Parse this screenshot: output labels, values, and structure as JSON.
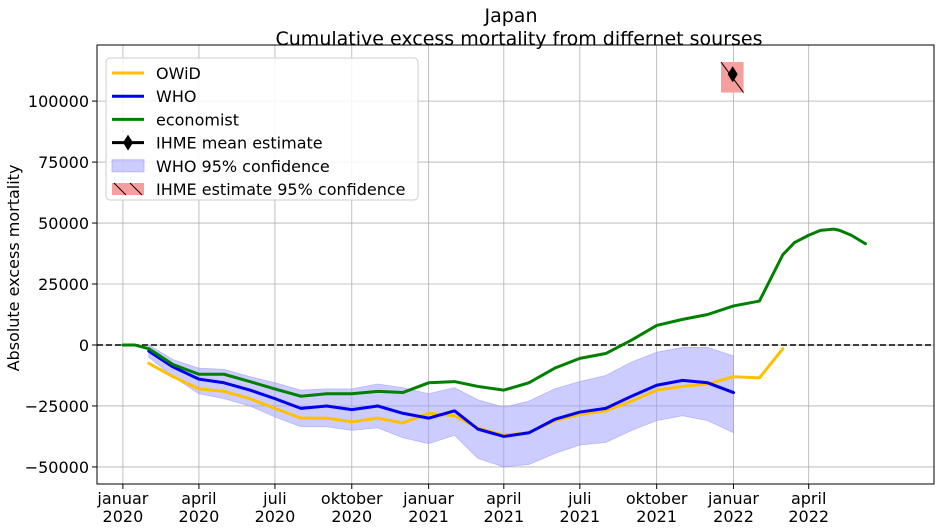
{
  "chart_data": {
    "type": "line",
    "title": "Japan",
    "subtitle": "Cumulative excess mortality from differnet sourses",
    "ylabel": "Absolute excess mortality",
    "xlabel": "",
    "ylim": [
      -57000,
      123000
    ],
    "xlim": [
      "2019-12-01",
      "2022-08-29"
    ],
    "grid": true,
    "legend_position": "top-left",
    "x_ticks": [
      {
        "date": "2020-01-01",
        "line1": "januar",
        "line2": "2020"
      },
      {
        "date": "2020-04-01",
        "line1": "april",
        "line2": "2020"
      },
      {
        "date": "2020-07-01",
        "line1": "juli",
        "line2": "2020"
      },
      {
        "date": "2020-10-01",
        "line1": "oktober",
        "line2": "2020"
      },
      {
        "date": "2021-01-01",
        "line1": "januar",
        "line2": "2021"
      },
      {
        "date": "2021-04-01",
        "line1": "april",
        "line2": "2021"
      },
      {
        "date": "2021-07-01",
        "line1": "juli",
        "line2": "2021"
      },
      {
        "date": "2021-10-01",
        "line1": "oktober",
        "line2": "2021"
      },
      {
        "date": "2022-01-01",
        "line1": "januar",
        "line2": "2022"
      },
      {
        "date": "2022-04-01",
        "line1": "april",
        "line2": "2022"
      }
    ],
    "y_ticks": [
      -50000,
      -25000,
      0,
      25000,
      50000,
      75000,
      100000
    ],
    "y_tick_labels": [
      "−50000",
      "−25000",
      "0",
      "25000",
      "50000",
      "75000",
      "100000"
    ],
    "reference_line": {
      "y": 0,
      "style": "dashed",
      "color": "#000000"
    },
    "series": [
      {
        "name": "OWiD",
        "color": "#ffc000",
        "x": [
          "2020-02-01",
          "2020-03-01",
          "2020-04-01",
          "2020-05-01",
          "2020-06-01",
          "2020-07-01",
          "2020-08-01",
          "2020-09-01",
          "2020-10-01",
          "2020-11-01",
          "2020-12-01",
          "2021-01-01",
          "2021-02-01",
          "2021-03-01",
          "2021-04-01",
          "2021-05-01",
          "2021-06-01",
          "2021-07-01",
          "2021-08-01",
          "2021-09-01",
          "2021-10-01",
          "2021-11-01",
          "2021-12-01",
          "2022-01-01",
          "2022-02-01",
          "2022-03-01"
        ],
        "y": [
          -7500,
          -13000,
          -18000,
          -19000,
          -22000,
          -26000,
          -30000,
          -30000,
          -31500,
          -30000,
          -32000,
          -28000,
          -29000,
          -34000,
          -37000,
          -36000,
          -31000,
          -28500,
          -27000,
          -23000,
          -18500,
          -17000,
          -16000,
          -13000,
          -13500,
          -1500
        ]
      },
      {
        "name": "WHO",
        "color": "#0000ee",
        "x": [
          "2020-02-01",
          "2020-03-01",
          "2020-04-01",
          "2020-05-01",
          "2020-06-01",
          "2020-07-01",
          "2020-08-01",
          "2020-09-01",
          "2020-10-01",
          "2020-11-01",
          "2020-12-01",
          "2021-01-01",
          "2021-02-01",
          "2021-03-01",
          "2021-04-01",
          "2021-05-01",
          "2021-06-01",
          "2021-07-01",
          "2021-08-01",
          "2021-09-01",
          "2021-10-01",
          "2021-11-01",
          "2021-12-01",
          "2022-01-01"
        ],
        "y": [
          -2500,
          -9000,
          -14000,
          -15500,
          -18500,
          -22000,
          -26000,
          -25000,
          -26500,
          -25000,
          -28000,
          -30000,
          -27000,
          -34500,
          -37500,
          -36000,
          -30500,
          -27500,
          -26000,
          -21000,
          -16500,
          -14500,
          -15500,
          -19500
        ]
      },
      {
        "name": "economist",
        "color": "#008000",
        "x": [
          "2020-01-01",
          "2020-01-15",
          "2020-02-01",
          "2020-03-01",
          "2020-04-01",
          "2020-05-01",
          "2020-06-01",
          "2020-07-01",
          "2020-08-01",
          "2020-09-01",
          "2020-10-01",
          "2020-11-01",
          "2020-12-01",
          "2021-01-01",
          "2021-02-01",
          "2021-03-01",
          "2021-04-01",
          "2021-05-01",
          "2021-06-01",
          "2021-07-01",
          "2021-08-01",
          "2021-09-01",
          "2021-10-01",
          "2021-11-01",
          "2021-12-01",
          "2022-01-01",
          "2022-02-01",
          "2022-03-01",
          "2022-03-15",
          "2022-04-01",
          "2022-04-15",
          "2022-05-01",
          "2022-05-08",
          "2022-05-22",
          "2022-06-08"
        ],
        "y": [
          0,
          0,
          -1500,
          -8000,
          -12000,
          -12000,
          -15000,
          -18000,
          -21000,
          -20000,
          -20000,
          -19000,
          -19500,
          -15500,
          -15000,
          -17000,
          -18500,
          -15500,
          -9500,
          -5500,
          -3500,
          2000,
          8000,
          10500,
          12500,
          16000,
          18000,
          37000,
          42000,
          45000,
          47000,
          47500,
          47000,
          45000,
          41500
        ]
      }
    ],
    "who_ci": {
      "name": "WHO 95% confidence",
      "color": "#9999ff",
      "x": [
        "2020-02-01",
        "2020-03-01",
        "2020-04-01",
        "2020-05-01",
        "2020-06-01",
        "2020-07-01",
        "2020-08-01",
        "2020-09-01",
        "2020-10-01",
        "2020-11-01",
        "2020-12-01",
        "2021-01-01",
        "2021-02-01",
        "2021-03-01",
        "2021-04-01",
        "2021-05-01",
        "2021-06-01",
        "2021-07-01",
        "2021-08-01",
        "2021-09-01",
        "2021-10-01",
        "2021-11-01",
        "2021-12-01",
        "2022-01-01"
      ],
      "upper": [
        0,
        -6000,
        -9500,
        -10000,
        -13000,
        -15500,
        -18500,
        -18000,
        -18000,
        -16000,
        -17500,
        -20000,
        -17500,
        -22500,
        -25500,
        -23000,
        -18000,
        -15000,
        -12500,
        -7000,
        -3000,
        -1000,
        -1000,
        -4500
      ],
      "lower": [
        -5000,
        -13000,
        -20000,
        -22000,
        -25000,
        -29500,
        -33500,
        -33500,
        -35000,
        -34000,
        -38000,
        -40500,
        -37000,
        -46500,
        -50000,
        -49000,
        -44500,
        -41000,
        -40000,
        -35000,
        -31000,
        -29000,
        -31000,
        -36000
      ]
    },
    "ihme": {
      "mean_label": "IHME mean estimate",
      "ci_label": " IHME estimate 95% confidence",
      "date": "2021-12-31",
      "mean": 111000,
      "ci_lower": 103500,
      "ci_upper": 116000,
      "box_start": "2021-12-17",
      "box_end": "2022-01-13",
      "marker_color": "#000000",
      "ci_color": "#f79e9e"
    }
  }
}
